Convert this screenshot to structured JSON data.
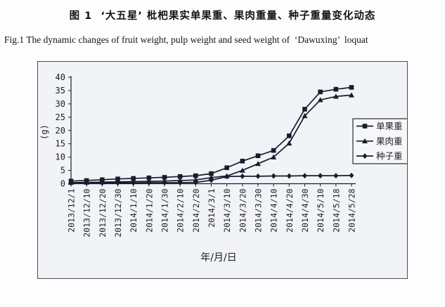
{
  "figure": {
    "title_zh": "图 1  ‘大五星’ 枇杷果实单果重、果肉重量、种子重量变化动态",
    "title_en": "Fig.1 The dynamic changes of fruit weight, pulp weight and seed weight of  ‘Dawuxing’  loquat"
  },
  "chart_data": {
    "type": "line",
    "title": "",
    "xlabel": "年/月/日",
    "ylabel": "(g)",
    "ylim": [
      0,
      40
    ],
    "yticks": [
      0,
      5,
      10,
      15,
      20,
      25,
      30,
      35,
      40
    ],
    "grid": false,
    "legend_position": "right-inside",
    "line_color": "#1b1b2e",
    "categories": [
      "2013/12/1",
      "2013/12/10",
      "2013/12/20",
      "2013/12/30",
      "2014/1/10",
      "2014/1/20",
      "2014/1/30",
      "2014/2/10",
      "2014/2/20",
      "2014/3/1",
      "2014/3/10",
      "2014/3/20",
      "2014/3/30",
      "2014/4/10",
      "2014/4/20",
      "2014/4/30",
      "2014/5/10",
      "2014/5/18",
      "2014/5/28"
    ],
    "series": [
      {
        "name": "单果重",
        "marker": "square",
        "values": [
          1.0,
          1.2,
          1.5,
          1.8,
          2.0,
          2.2,
          2.4,
          2.7,
          3.0,
          3.8,
          6.0,
          8.5,
          10.5,
          12.5,
          18.0,
          28.0,
          34.5,
          35.5,
          36.2
        ]
      },
      {
        "name": "果肉重",
        "marker": "triangle",
        "values": [
          0.4,
          0.5,
          0.6,
          0.7,
          0.8,
          0.9,
          1.0,
          1.2,
          1.4,
          2.3,
          2.9,
          5.0,
          7.5,
          10.0,
          15.2,
          25.5,
          31.5,
          32.8,
          33.3
        ]
      },
      {
        "name": "种子重",
        "marker": "diamond",
        "values": [
          0.3,
          0.3,
          0.3,
          0.3,
          0.3,
          0.4,
          0.4,
          0.4,
          0.5,
          1.3,
          2.7,
          2.8,
          2.8,
          2.9,
          2.9,
          3.0,
          3.0,
          3.0,
          3.1
        ]
      }
    ]
  }
}
